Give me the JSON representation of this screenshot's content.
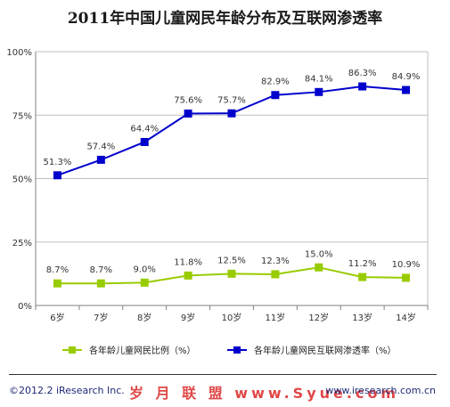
{
  "title": "2011年中国儿童网民年龄分布及互联网渗透率",
  "footer": {
    "copyright": "©2012.2 iResearch Inc.",
    "website": "www.iresearch.com.cn",
    "watermark": "岁 月 联 盟 www.Syue.com"
  },
  "colors": {
    "series_1": "#99cc00",
    "series_2": "#0000cc",
    "grid": "#bfbfbf",
    "axis": "#808080"
  },
  "chart_data": {
    "type": "line",
    "title": "2011年中国儿童网民年龄分布及互联网渗透率",
    "categories": [
      "6岁",
      "7岁",
      "8岁",
      "9岁",
      "10岁",
      "11岁",
      "12岁",
      "13岁",
      "14岁"
    ],
    "ylim": [
      0,
      100
    ],
    "yticks": [
      0,
      25,
      50,
      75,
      100
    ],
    "ytick_labels": [
      "0%",
      "25%",
      "50%",
      "75%",
      "100%"
    ],
    "grid": true,
    "legend_position": "bottom",
    "series": [
      {
        "name": "各年龄儿童网民比例（%）",
        "color": "#99cc00",
        "values": [
          8.7,
          8.7,
          9.0,
          11.8,
          12.5,
          12.3,
          15.0,
          11.2,
          10.9
        ],
        "labels": [
          "8.7%",
          "8.7%",
          "9.0%",
          "11.8%",
          "12.5%",
          "12.3%",
          "15.0%",
          "11.2%",
          "10.9%"
        ]
      },
      {
        "name": "各年龄儿童网民互联网渗透率（%）",
        "color": "#0000cc",
        "values": [
          51.3,
          57.4,
          64.4,
          75.6,
          75.7,
          82.9,
          84.1,
          86.3,
          84.9
        ],
        "labels": [
          "51.3%",
          "57.4%",
          "64.4%",
          "75.6%",
          "75.7%",
          "82.9%",
          "84.1%",
          "86.3%",
          "84.9%"
        ]
      }
    ]
  }
}
